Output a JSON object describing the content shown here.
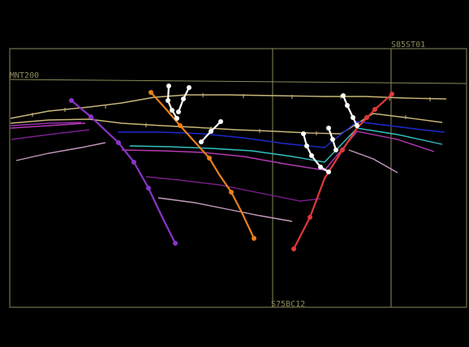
{
  "labels": {
    "top_right": "S85ST01",
    "top_left": "MNT200",
    "bottom_center": "S75BC12"
  },
  "colors": {
    "background": "#000000",
    "frame": "#8c8a5a",
    "fault_purple": "#8a35c8",
    "fault_orange": "#e8801c",
    "fault_red": "#e03a3a",
    "picks_white": "#ffffff",
    "horizon_tan": "#c9b778",
    "horizon_blue": "#1c2ad0",
    "horizon_cyan": "#33c3c3",
    "horizon_magenta": "#b53ab5",
    "horizon_purple": "#7a1f8a",
    "horizon_pink": "#c59ac0"
  },
  "icons": {
    "fault_node": "filled-circle",
    "pick_node": "white-dot"
  }
}
